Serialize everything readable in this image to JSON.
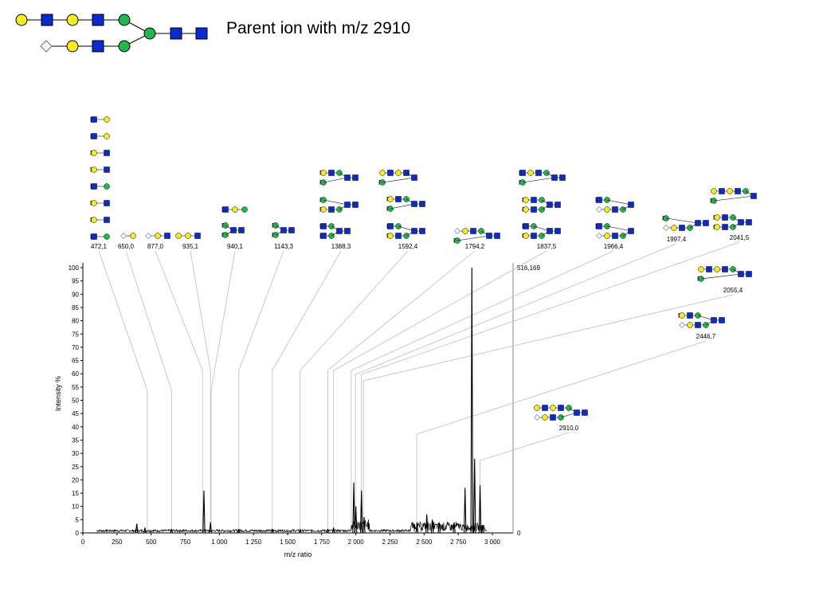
{
  "slide": {
    "title": "Parent ion with m/z 2910"
  },
  "colors": {
    "glucnac": "#0a2bd0",
    "galactose": "#f5ec1a",
    "mannose": "#1fb84a",
    "fucose": "#ffffff",
    "spectrum": "#000000",
    "leader": "#bdbdbd"
  },
  "chart_data": {
    "type": "line",
    "xlabel": "m/z ratio",
    "ylabel": "Intensity %",
    "xlim": [
      0,
      3000
    ],
    "ylim": [
      0,
      100
    ],
    "x_ticks": [
      "0",
      "250",
      "500",
      "750",
      "1 000",
      "1 250",
      "1 500",
      "1 750",
      "2 000",
      "2 250",
      "2 500",
      "2 750",
      "3 000"
    ],
    "y_ticks": [
      "0",
      "5",
      "10",
      "15",
      "20",
      "25",
      "30",
      "35",
      "40",
      "45",
      "50",
      "55",
      "60",
      "65",
      "70",
      "75",
      "80",
      "85",
      "90",
      "95",
      "100"
    ],
    "right_axis": {
      "top_label": "516,169",
      "bottom_label": "0"
    },
    "peaks": [
      {
        "x": 395,
        "y": 3.5
      },
      {
        "x": 455,
        "y": 2.0
      },
      {
        "x": 650,
        "y": 1.5
      },
      {
        "x": 887,
        "y": 16
      },
      {
        "x": 935,
        "y": 4
      },
      {
        "x": 1143,
        "y": 1.5
      },
      {
        "x": 1388,
        "y": 1.5
      },
      {
        "x": 1592,
        "y": 1.5
      },
      {
        "x": 1794,
        "y": 1.5
      },
      {
        "x": 1837,
        "y": 2
      },
      {
        "x": 1985,
        "y": 19
      },
      {
        "x": 2000,
        "y": 10
      },
      {
        "x": 2041,
        "y": 16
      },
      {
        "x": 2060,
        "y": 6
      },
      {
        "x": 2448,
        "y": 4
      },
      {
        "x": 2520,
        "y": 7
      },
      {
        "x": 2560,
        "y": 5
      },
      {
        "x": 2610,
        "y": 4
      },
      {
        "x": 2720,
        "y": 4
      },
      {
        "x": 2800,
        "y": 17
      },
      {
        "x": 2850,
        "y": 100
      },
      {
        "x": 2870,
        "y": 28
      },
      {
        "x": 2910,
        "y": 18
      },
      {
        "x": 2930,
        "y": 3
      }
    ],
    "fragments": [
      {
        "label": "472,1",
        "mz": 472
      },
      {
        "label": "650,0",
        "mz": 650
      },
      {
        "label": "877,0",
        "mz": 877
      },
      {
        "label": "935,1",
        "mz": 935
      },
      {
        "label": "940,1",
        "mz": 940
      },
      {
        "label": "1143,3",
        "mz": 1143
      },
      {
        "label": "1388,3",
        "mz": 1388
      },
      {
        "label": "1592,4",
        "mz": 1592
      },
      {
        "label": "1794,2",
        "mz": 1794
      },
      {
        "label": "1837,5",
        "mz": 1837
      },
      {
        "label": "1966,4",
        "mz": 1966
      },
      {
        "label": "1997,4",
        "mz": 1997
      },
      {
        "label": "2041,5",
        "mz": 2041
      },
      {
        "label": "2055,4",
        "mz": 2055
      },
      {
        "label": "2446,7",
        "mz": 2446
      },
      {
        "label": "2910,0",
        "mz": 2910
      }
    ]
  }
}
